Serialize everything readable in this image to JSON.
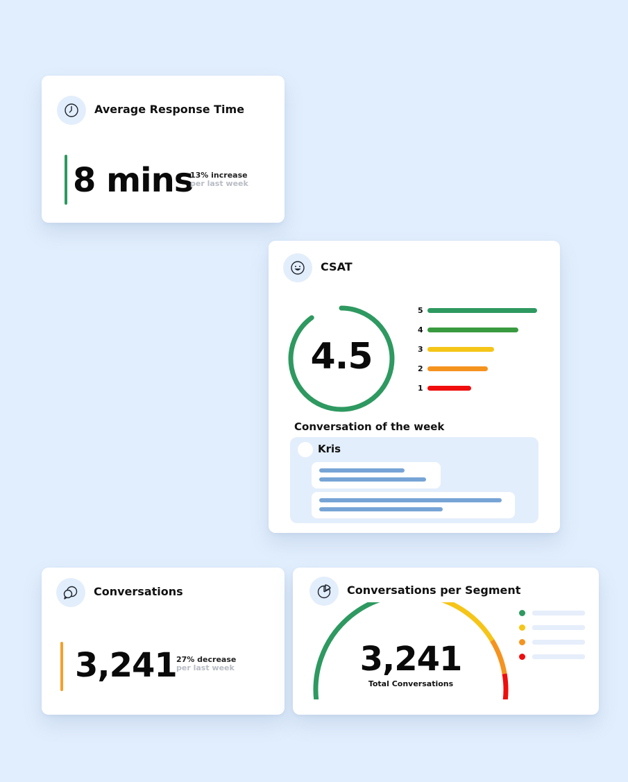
{
  "response_card": {
    "title": "Average Response Time",
    "icon": "clock-icon",
    "value": "8 mins",
    "delta_label": "13% increase",
    "delta_period": "per last week",
    "accent_color": "#2e9960"
  },
  "csat_card": {
    "title": "CSAT",
    "icon": "smiley-icon",
    "score": "4.5",
    "score_fraction": 0.9,
    "ring_color": "#2e9960",
    "ratings": [
      {
        "label": "5",
        "level": 1.0,
        "color": "#2e9960"
      },
      {
        "label": "4",
        "level": 0.83,
        "color": "#3a9a3f"
      },
      {
        "label": "3",
        "level": 0.61,
        "color": "#f5c518"
      },
      {
        "label": "2",
        "level": 0.55,
        "color": "#f5931f"
      },
      {
        "label": "1",
        "level": 0.4,
        "color": "#f00d0d"
      }
    ],
    "week_title": "Conversation of the week",
    "chat_name": "Kris"
  },
  "conversations_card": {
    "title": "Conversations",
    "icon": "chat-bubbles-icon",
    "value": "3,241",
    "delta_label": "27% decrease",
    "delta_period": "per last week",
    "accent_color": "#f5a02a"
  },
  "segment_card": {
    "title": "Conversations per Segment",
    "icon": "pie-chart-icon",
    "value": "3,241",
    "caption": "Total Conversations",
    "segments": [
      {
        "share": 0.6,
        "color": "#2e9960"
      },
      {
        "share": 0.2,
        "color": "#f5c518"
      },
      {
        "share": 0.11,
        "color": "#f5931f"
      },
      {
        "share": 0.09,
        "color": "#f00d0d"
      }
    ]
  }
}
